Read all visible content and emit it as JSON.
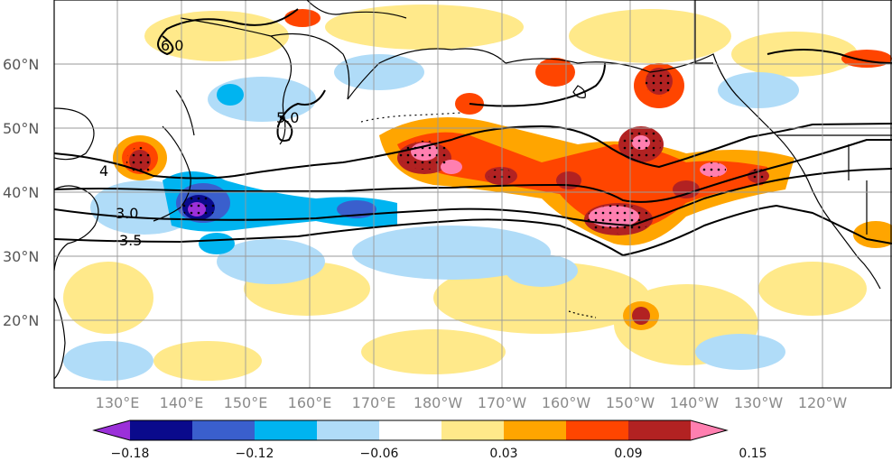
{
  "map": {
    "lat_labels": [
      "60°N",
      "50°N",
      "40°N",
      "30°N",
      "20°N"
    ],
    "lon_labels": [
      "130°E",
      "140°E",
      "150°E",
      "160°E",
      "170°E",
      "180°W",
      "170°W",
      "160°W",
      "150°W",
      "140°W",
      "130°W",
      "120°W"
    ],
    "contour_labels": [
      "6.0",
      "5.0",
      "4",
      "3.0",
      "3.5"
    ],
    "contour_color": "#000000",
    "coast_color": "#000000",
    "grid_color": "#9a9a9a"
  },
  "colorbar": {
    "tick_labels": [
      "−0.18",
      "−0.12",
      "−0.06",
      "0.03",
      "0.09",
      "0.15"
    ],
    "bins": [
      "#9b30d9",
      "#0a0a8c",
      "#3a5fcd",
      "#00b4f0",
      "#b0dcf8",
      "#ffffff",
      "#ffe98a",
      "#ffa500",
      "#ff4500",
      "#b22222",
      "#ff7fb0"
    ]
  }
}
